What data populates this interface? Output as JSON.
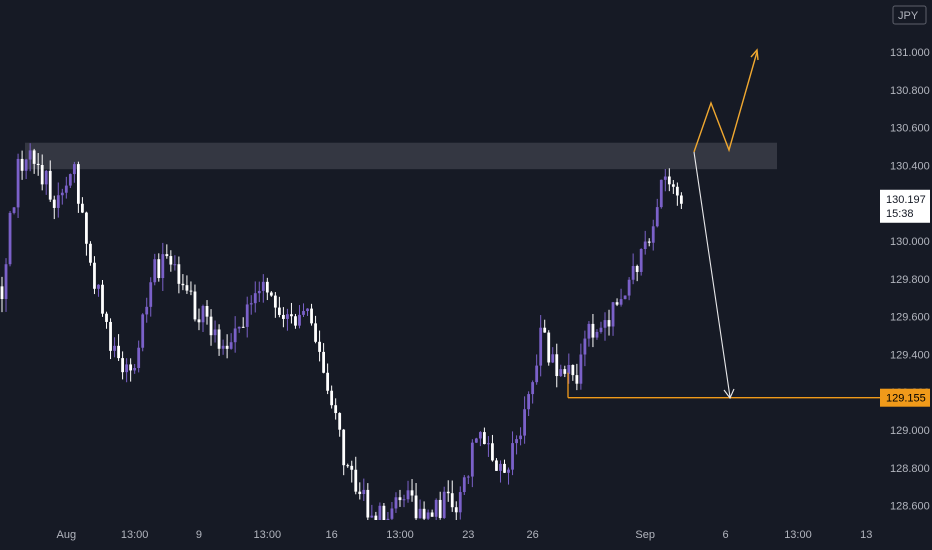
{
  "symbol_label": "JPY",
  "colors": {
    "background": "#161a25",
    "bull": "#7b61c9",
    "bear": "#ffffff",
    "zone": "#3a3d48",
    "bullish_path": "#f0a830",
    "support_line": "#f09a1a",
    "bearish_arrow": "#e8e8ea",
    "axis_text": "#b2b5be"
  },
  "chart_data": {
    "type": "candlestick",
    "title": "",
    "xlabel": "",
    "ylabel": "",
    "ylim": [
      128.5,
      131.2
    ],
    "y_ticks": [
      "131.000",
      "130.800",
      "130.600",
      "130.400",
      "130.000",
      "129.800",
      "129.600",
      "129.400",
      "129.000",
      "128.800",
      "128.600"
    ],
    "y_tick_values": [
      131.0,
      130.8,
      130.6,
      130.4,
      130.0,
      129.8,
      129.6,
      129.4,
      129.0,
      128.8,
      128.6
    ],
    "x_ticks": [
      "Aug",
      "13:00",
      "9",
      "13:00",
      "16",
      "13:00",
      "23",
      "26",
      "Sep",
      "6",
      "13:00",
      "13"
    ],
    "x_tick_index": [
      16,
      33,
      49,
      66,
      82,
      99,
      116,
      132,
      160,
      180,
      198,
      215
    ],
    "current_price": {
      "value": 130.197,
      "label": "130.197",
      "countdown": "15:38"
    },
    "support_price": {
      "value": 129.155,
      "label": "129.155"
    },
    "resistance_zone": {
      "low": 130.38,
      "high": 130.52
    },
    "anchors": [
      [
        0,
        129.76
      ],
      [
        4,
        130.4
      ],
      [
        8,
        130.45
      ],
      [
        14,
        130.2
      ],
      [
        18,
        130.38
      ],
      [
        22,
        129.88
      ],
      [
        28,
        129.4
      ],
      [
        32,
        129.3
      ],
      [
        38,
        129.85
      ],
      [
        42,
        129.92
      ],
      [
        46,
        129.7
      ],
      [
        52,
        129.55
      ],
      [
        56,
        129.4
      ],
      [
        60,
        129.58
      ],
      [
        64,
        129.75
      ],
      [
        70,
        129.6
      ],
      [
        76,
        129.64
      ],
      [
        80,
        129.3
      ],
      [
        84,
        128.95
      ],
      [
        88,
        128.68
      ],
      [
        92,
        128.55
      ],
      [
        96,
        128.52
      ],
      [
        100,
        128.65
      ],
      [
        104,
        128.55
      ],
      [
        108,
        128.6
      ],
      [
        114,
        128.62
      ],
      [
        118,
        129.0
      ],
      [
        122,
        128.85
      ],
      [
        126,
        128.8
      ],
      [
        130,
        129.05
      ],
      [
        134,
        129.48
      ],
      [
        138,
        129.35
      ],
      [
        142,
        129.25
      ],
      [
        146,
        129.5
      ],
      [
        150,
        129.55
      ],
      [
        154,
        129.68
      ],
      [
        158,
        129.85
      ],
      [
        162,
        130.1
      ],
      [
        165,
        130.4
      ],
      [
        167,
        130.25
      ],
      [
        169,
        130.197
      ]
    ]
  }
}
